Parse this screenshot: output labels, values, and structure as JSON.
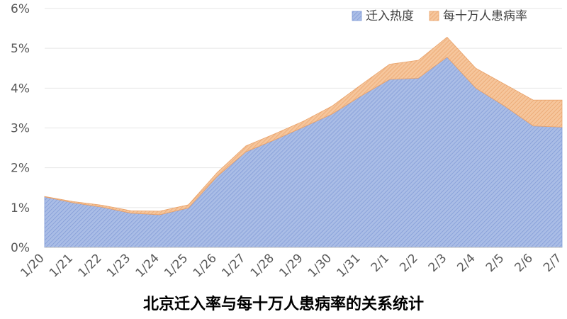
{
  "chart_data": {
    "type": "area",
    "stacked": true,
    "title": "北京迁入率与每十万人患病率的关系统计",
    "categories": [
      "1/20",
      "1/21",
      "1/22",
      "1/23",
      "1/24",
      "1/25",
      "1/26",
      "1/27",
      "1/28",
      "1/29",
      "1/30",
      "1/31",
      "2/1",
      "2/2",
      "2/3",
      "2/4",
      "2/5",
      "2/6",
      "2/7"
    ],
    "y_ticks": [
      "0%",
      "1%",
      "2%",
      "3%",
      "4%",
      "5%",
      "6%"
    ],
    "ylim": [
      0,
      6
    ],
    "legend_position": "top-right",
    "grid": true,
    "series": [
      {
        "name": "迁入热度",
        "color": "#8fa8de",
        "values": [
          1.27,
          1.12,
          1.01,
          0.86,
          0.82,
          0.99,
          1.78,
          2.4,
          2.7,
          3.02,
          3.35,
          3.8,
          4.22,
          4.25,
          4.78,
          4.0,
          3.55,
          3.05,
          3.02
        ]
      },
      {
        "name": "每十万人患病率",
        "color": "#f2b27e",
        "values": [
          0.01,
          0.03,
          0.05,
          0.06,
          0.09,
          0.08,
          0.1,
          0.15,
          0.15,
          0.15,
          0.2,
          0.28,
          0.38,
          0.45,
          0.5,
          0.5,
          0.55,
          0.65,
          0.68
        ]
      }
    ]
  }
}
